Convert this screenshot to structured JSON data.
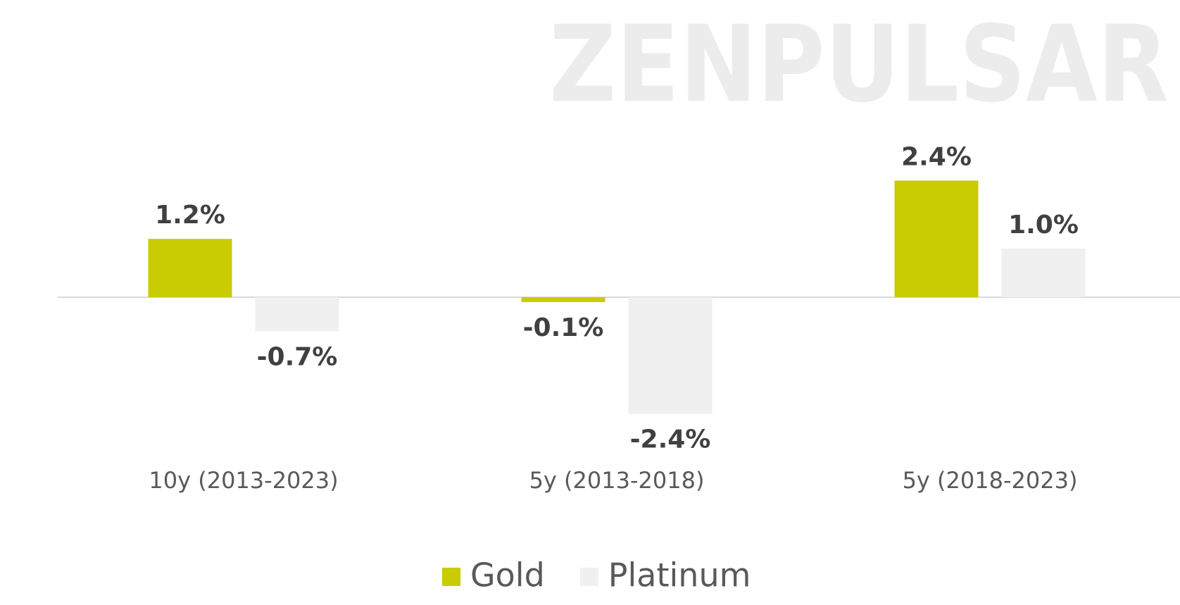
{
  "chart_data": {
    "type": "bar",
    "watermark": "ZENPULSAR",
    "categories": [
      "10y (2013-2023)",
      "5y (2013-2018)",
      "5y (2018-2023)"
    ],
    "series": [
      {
        "name": "Gold",
        "color": "#c8cc00",
        "values": [
          1.2,
          -0.1,
          2.4
        ],
        "value_labels": [
          "1.2%",
          "-0.1%",
          "2.4%"
        ]
      },
      {
        "name": "Platinum",
        "color": "#f0f0f0",
        "values": [
          -0.7,
          -2.4,
          1.0
        ],
        "value_labels": [
          "-0.7%",
          "-2.4%",
          "1.0%"
        ]
      }
    ],
    "legend": "bottom"
  }
}
